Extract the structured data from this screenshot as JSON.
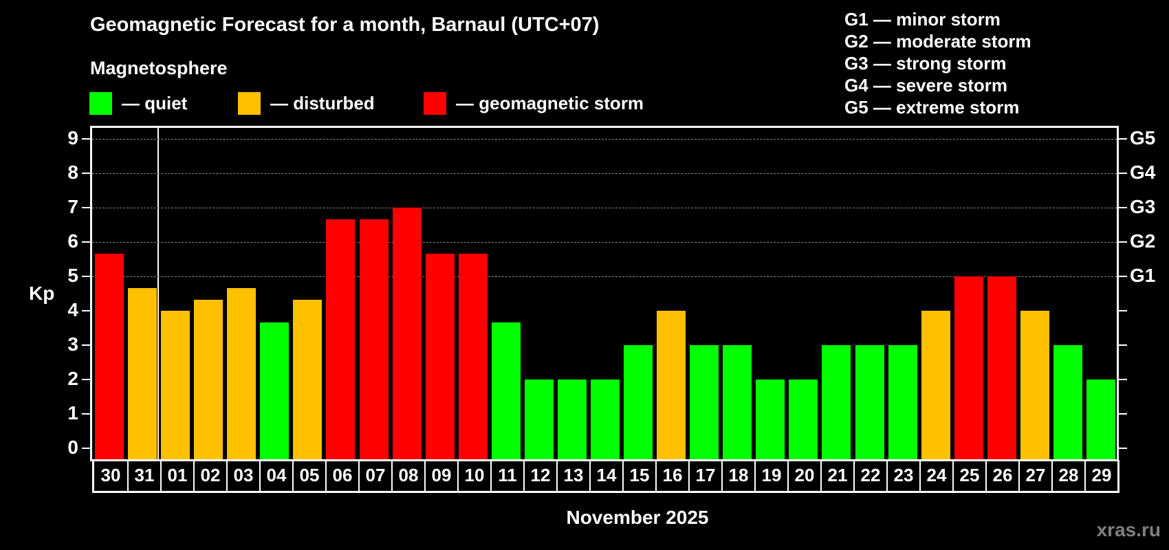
{
  "header": {
    "title": "Geomagnetic Forecast for a month, Barnaul (UTC+07)",
    "subtitle": "Magnetosphere"
  },
  "legend": [
    {
      "label": "— quiet",
      "color": "#00ff00"
    },
    {
      "label": "— disturbed",
      "color": "#ffc000"
    },
    {
      "label": "— geomagnetic storm",
      "color": "#ff0000"
    }
  ],
  "g_legend": [
    "G1 — minor storm",
    "G2 — moderate storm",
    "G3 — strong storm",
    "G4 — severe storm",
    "G5 — extreme storm"
  ],
  "axes": {
    "ylabel": "Kp",
    "xlabel": "November 2025",
    "yticks": [
      "0",
      "1",
      "2",
      "3",
      "4",
      "5",
      "6",
      "7",
      "8",
      "9"
    ],
    "right_ticks": [
      {
        "kp": 5,
        "label": "G1"
      },
      {
        "kp": 6,
        "label": "G2"
      },
      {
        "kp": 7,
        "label": "G3"
      },
      {
        "kp": 8,
        "label": "G4"
      },
      {
        "kp": 9,
        "label": "G5"
      }
    ]
  },
  "watermark": "xras.ru",
  "chart_data": {
    "type": "bar",
    "title": "Geomagnetic Forecast for a month, Barnaul (UTC+07)",
    "xlabel": "November 2025",
    "ylabel": "Kp",
    "ylim": [
      0,
      9
    ],
    "grid": "horizontal dashed at Kp 5-9",
    "categories": [
      "30",
      "31",
      "01",
      "02",
      "03",
      "04",
      "05",
      "06",
      "07",
      "08",
      "09",
      "10",
      "11",
      "12",
      "13",
      "14",
      "15",
      "16",
      "17",
      "18",
      "19",
      "20",
      "21",
      "22",
      "23",
      "24",
      "25",
      "26",
      "27",
      "28",
      "29"
    ],
    "values": [
      5.67,
      4.67,
      4,
      4.33,
      4.67,
      3.67,
      4.33,
      6.67,
      6.67,
      7,
      5.67,
      5.67,
      3.67,
      2,
      2,
      2,
      3,
      4,
      3,
      3,
      2,
      2,
      3,
      3,
      3,
      4,
      5,
      5,
      4,
      3,
      2
    ],
    "levels": [
      "storm",
      "disturbed",
      "disturbed",
      "disturbed",
      "disturbed",
      "quiet",
      "disturbed",
      "storm",
      "storm",
      "storm",
      "storm",
      "storm",
      "quiet",
      "quiet",
      "quiet",
      "quiet",
      "quiet",
      "disturbed",
      "quiet",
      "quiet",
      "quiet",
      "quiet",
      "quiet",
      "quiet",
      "quiet",
      "disturbed",
      "storm",
      "storm",
      "disturbed",
      "quiet",
      "quiet"
    ],
    "level_colors": {
      "quiet": "#00ff00",
      "disturbed": "#ffc000",
      "storm": "#ff0000"
    },
    "month_divider_after_index": 1,
    "legend": [
      "quiet",
      "disturbed",
      "geomagnetic storm"
    ],
    "right_axis": {
      "G1": 5,
      "G2": 6,
      "G3": 7,
      "G4": 8,
      "G5": 9
    }
  }
}
